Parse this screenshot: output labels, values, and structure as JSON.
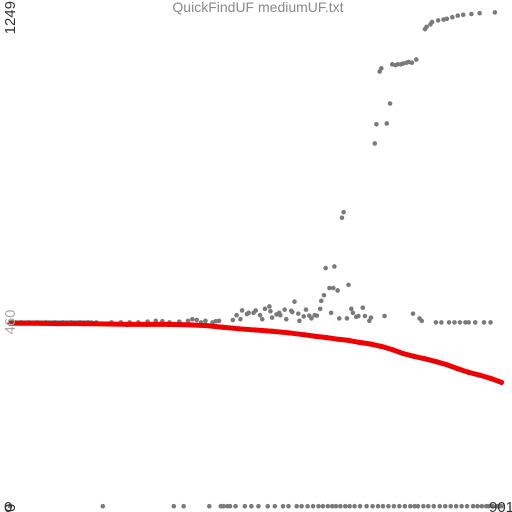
{
  "chart_data": {
    "type": "scatter",
    "title": "QuickFindUF mediumUF.txt",
    "xlabel": "",
    "ylabel": "",
    "x_tick_labels": [
      "0",
      "901"
    ],
    "y_tick_labels": [
      "1249",
      "460",
      "0"
    ],
    "xlim": [
      0,
      901
    ],
    "ylim": [
      0,
      1249
    ],
    "grid": false,
    "colors": {
      "title": "#8a8a8a",
      "tick_high": "#333333",
      "tick_mid": "#aaaaaa",
      "tick_zero": "#333333",
      "cost_points": "#7a7a7a",
      "running_average": "#ee0000"
    },
    "series": [
      {
        "role": "cost",
        "points": [
          [
            0,
            2
          ],
          [
            3,
            462
          ],
          [
            9,
            462
          ],
          [
            20,
            462
          ],
          [
            34,
            462
          ],
          [
            50,
            462
          ],
          [
            66,
            462
          ],
          [
            82,
            462
          ],
          [
            97,
            462
          ],
          [
            112,
            462
          ],
          [
            128,
            462
          ],
          [
            143,
            462
          ],
          [
            158,
            462
          ],
          [
            170,
            2
          ],
          [
            186,
            462
          ],
          [
            203,
            462
          ],
          [
            219,
            462
          ],
          [
            235,
            462
          ],
          [
            252,
            464
          ],
          [
            267,
            466
          ],
          [
            279,
            465
          ],
          [
            292,
            462
          ],
          [
            300,
            2
          ],
          [
            310,
            464
          ],
          [
            318,
            2
          ],
          [
            326,
            466
          ],
          [
            334,
            470
          ],
          [
            342,
            468
          ],
          [
            350,
            462
          ],
          [
            358,
            466
          ],
          [
            365,
            2
          ],
          [
            371,
            462
          ],
          [
            377,
            465
          ],
          [
            383,
            466
          ],
          [
            386,
            2
          ],
          [
            391,
            2
          ],
          [
            398,
            2
          ],
          [
            403,
            2
          ],
          [
            408,
            468
          ],
          [
            413,
            2
          ],
          [
            415,
            480
          ],
          [
            422,
            470
          ],
          [
            425,
            492
          ],
          [
            430,
            2
          ],
          [
            434,
            483
          ],
          [
            437,
            486
          ],
          [
            442,
            2
          ],
          [
            446,
            486
          ],
          [
            450,
            492
          ],
          [
            455,
            2
          ],
          [
            458,
            480
          ],
          [
            462,
            470
          ],
          [
            467,
            496
          ],
          [
            472,
            2
          ],
          [
            475,
            502
          ],
          [
            477,
            490
          ],
          [
            480,
            474
          ],
          [
            485,
            2
          ],
          [
            488,
            482
          ],
          [
            493,
            486
          ],
          [
            495,
            480
          ],
          [
            500,
            2
          ],
          [
            503,
            494
          ],
          [
            506,
            470
          ],
          [
            510,
            2
          ],
          [
            515,
            491
          ],
          [
            517,
            488
          ],
          [
            521,
            514
          ],
          [
            525,
            2
          ],
          [
            528,
            484
          ],
          [
            530,
            466
          ],
          [
            534,
            2
          ],
          [
            538,
            477
          ],
          [
            542,
            494
          ],
          [
            545,
            2
          ],
          [
            548,
            479
          ],
          [
            552,
            472
          ],
          [
            555,
            2
          ],
          [
            558,
            480
          ],
          [
            562,
            479
          ],
          [
            565,
            2
          ],
          [
            568,
            496
          ],
          [
            570,
            516
          ],
          [
            573,
            2
          ],
          [
            575,
            530
          ],
          [
            578,
            598
          ],
          [
            582,
            2
          ],
          [
            585,
            548
          ],
          [
            588,
            486
          ],
          [
            590,
            2
          ],
          [
            592,
            548
          ],
          [
            594,
            602
          ],
          [
            597,
            2
          ],
          [
            600,
            542
          ],
          [
            603,
            472
          ],
          [
            605,
            2
          ],
          [
            608,
            724
          ],
          [
            611,
            738
          ],
          [
            614,
            2
          ],
          [
            617,
            472
          ],
          [
            620,
            556
          ],
          [
            622,
            2
          ],
          [
            625,
            496
          ],
          [
            628,
            486
          ],
          [
            631,
            2
          ],
          [
            634,
            476
          ],
          [
            638,
            478
          ],
          [
            641,
            2
          ],
          [
            646,
            499
          ],
          [
            650,
            478
          ],
          [
            653,
            2
          ],
          [
            658,
            466
          ],
          [
            661,
            474
          ],
          [
            664,
            2
          ],
          [
            668,
            910
          ],
          [
            671,
            958
          ],
          [
            674,
            2
          ],
          [
            677,
            1090
          ],
          [
            680,
            1098
          ],
          [
            683,
            2
          ],
          [
            686,
            478
          ],
          [
            690,
            960
          ],
          [
            693,
            2
          ],
          [
            696,
            1010
          ],
          [
            700,
            1108
          ],
          [
            703,
            2
          ],
          [
            706,
            1106
          ],
          [
            710,
            1108
          ],
          [
            713,
            2
          ],
          [
            716,
            1108
          ],
          [
            720,
            1110
          ],
          [
            723,
            2
          ],
          [
            726,
            1112
          ],
          [
            730,
            1114
          ],
          [
            733,
            2
          ],
          [
            736,
            1112
          ],
          [
            738,
            484
          ],
          [
            741,
            2
          ],
          [
            744,
            1120
          ],
          [
            747,
            2
          ],
          [
            750,
            472
          ],
          [
            754,
            466
          ],
          [
            757,
            2
          ],
          [
            760,
            1196
          ],
          [
            763,
            1202
          ],
          [
            766,
            2
          ],
          [
            770,
            1208
          ],
          [
            773,
            1214
          ],
          [
            776,
            2
          ],
          [
            780,
            462
          ],
          [
            784,
            1218
          ],
          [
            787,
            2
          ],
          [
            790,
            462
          ],
          [
            794,
            1220
          ],
          [
            797,
            2
          ],
          [
            800,
            1222
          ],
          [
            804,
            462
          ],
          [
            807,
            2
          ],
          [
            810,
            1226
          ],
          [
            814,
            462
          ],
          [
            817,
            2
          ],
          [
            820,
            1230
          ],
          [
            824,
            462
          ],
          [
            827,
            2
          ],
          [
            830,
            1232
          ],
          [
            834,
            462
          ],
          [
            837,
            2
          ],
          [
            840,
            462
          ],
          [
            845,
            1234
          ],
          [
            848,
            2
          ],
          [
            852,
            462
          ],
          [
            856,
            2
          ],
          [
            860,
            1236
          ],
          [
            864,
            2
          ],
          [
            868,
            462
          ],
          [
            872,
            2
          ],
          [
            876,
            2
          ],
          [
            880,
            462
          ],
          [
            884,
            2
          ],
          [
            888,
            1238
          ],
          [
            892,
            2
          ],
          [
            896,
            2
          ],
          [
            900,
            2
          ]
        ]
      },
      {
        "role": "running-average",
        "points": [
          [
            0,
            460
          ],
          [
            45,
            460
          ],
          [
            90,
            459
          ],
          [
            135,
            459
          ],
          [
            180,
            458
          ],
          [
            215,
            457
          ],
          [
            250,
            457
          ],
          [
            290,
            457
          ],
          [
            330,
            456
          ],
          [
            360,
            454
          ],
          [
            390,
            450
          ],
          [
            420,
            446
          ],
          [
            450,
            443
          ],
          [
            480,
            440
          ],
          [
            510,
            436
          ],
          [
            540,
            431
          ],
          [
            560,
            427
          ],
          [
            580,
            424
          ],
          [
            600,
            420
          ],
          [
            620,
            417
          ],
          [
            640,
            412
          ],
          [
            660,
            408
          ],
          [
            680,
            402
          ],
          [
            700,
            394
          ],
          [
            720,
            384
          ],
          [
            740,
            377
          ],
          [
            760,
            371
          ],
          [
            780,
            364
          ],
          [
            800,
            356
          ],
          [
            820,
            346
          ],
          [
            840,
            337
          ],
          [
            860,
            330
          ],
          [
            880,
            322
          ],
          [
            900,
            312
          ]
        ]
      }
    ]
  }
}
